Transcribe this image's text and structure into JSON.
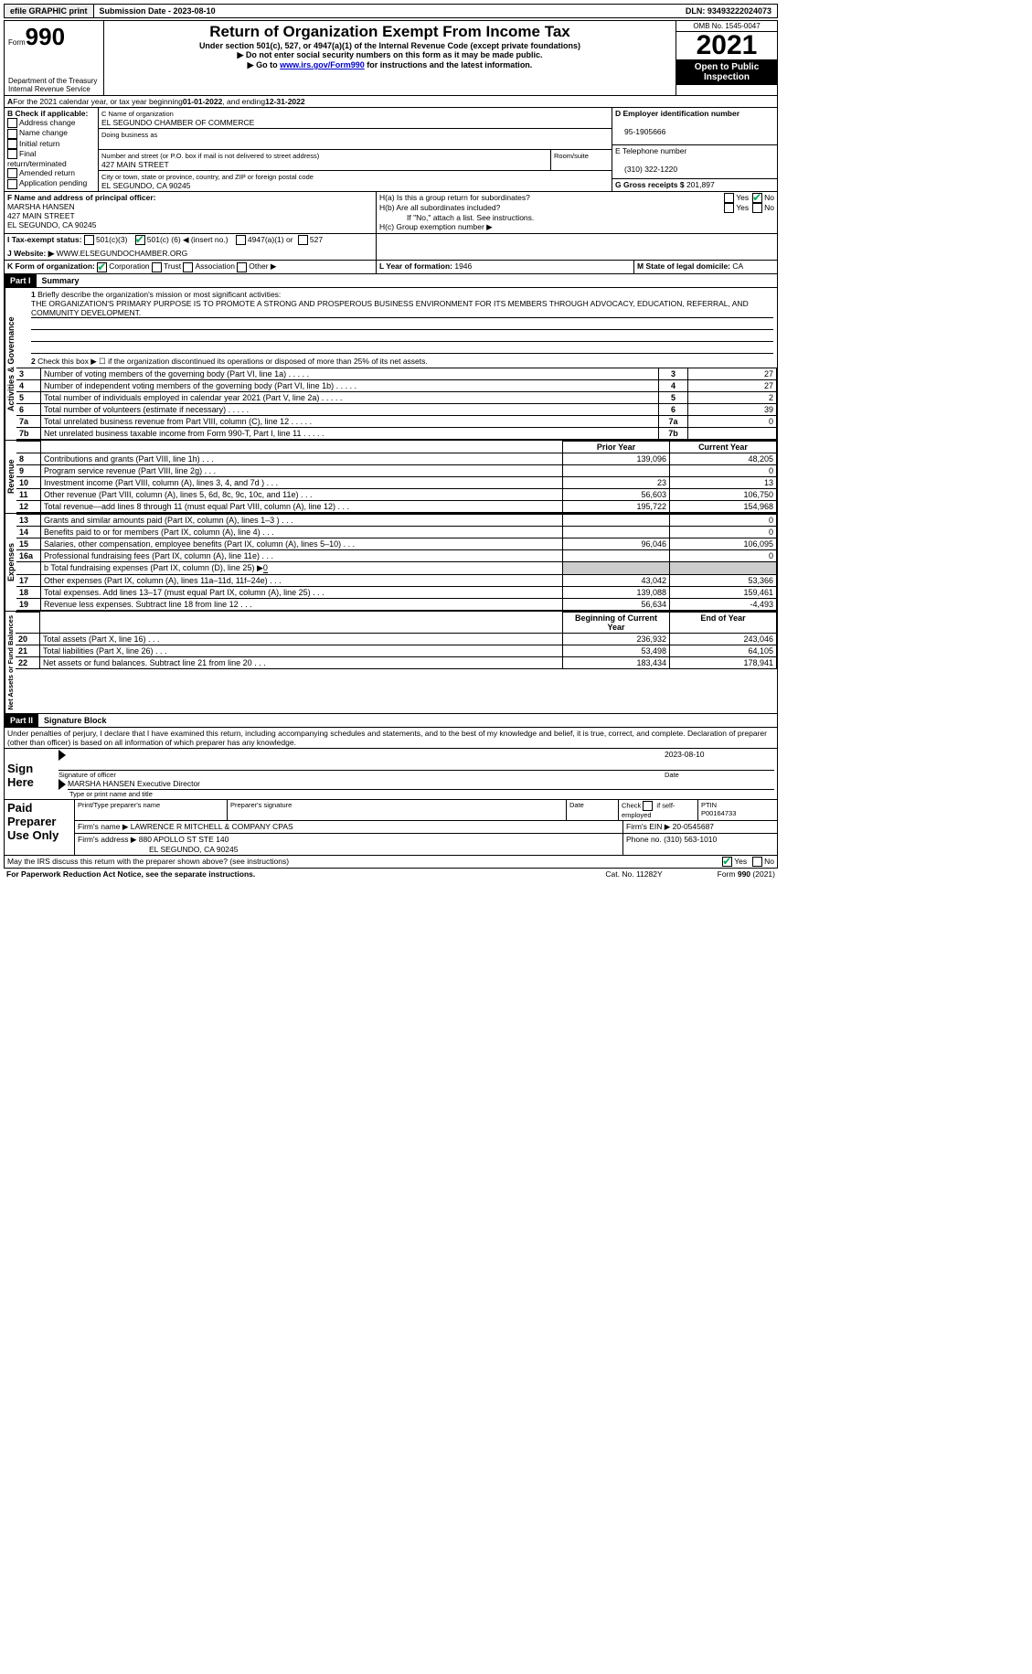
{
  "topbar": {
    "efile": "efile GRAPHIC print",
    "submission_label": "Submission Date - ",
    "submission_date": "2023-08-10",
    "dln_label": "DLN: ",
    "dln": "93493222024073"
  },
  "header": {
    "form_prefix": "Form",
    "form_number": "990",
    "dept1": "Department of the Treasury",
    "dept2": "Internal Revenue Service",
    "title": "Return of Organization Exempt From Income Tax",
    "subtitle": "Under section 501(c), 527, or 4947(a)(1) of the Internal Revenue Code (except private foundations)",
    "note1": "▶ Do not enter social security numbers on this form as it may be made public.",
    "note2_pre": "▶ Go to ",
    "note2_link": "www.irs.gov/Form990",
    "note2_post": " for instructions and the latest information.",
    "omb": "OMB No. 1545-0047",
    "year": "2021",
    "open": "Open to Public Inspection"
  },
  "periodA": {
    "text_pre": "For the 2021 calendar year, or tax year beginning ",
    "begin": "01-01-2022",
    "text_mid": " , and ending ",
    "end": "12-31-2022"
  },
  "boxB": {
    "label": "B Check if applicable:",
    "opts": [
      "Address change",
      "Name change",
      "Initial return",
      "Final return/terminated",
      "Amended return",
      "Application pending"
    ]
  },
  "boxC": {
    "name_label": "C Name of organization",
    "name": "EL SEGUNDO CHAMBER OF COMMERCE",
    "dba_label": "Doing business as",
    "addr_label": "Number and street (or P.O. box if mail is not delivered to street address)",
    "room_label": "Room/suite",
    "addr": "427 MAIN STREET",
    "city_label": "City or town, state or province, country, and ZIP or foreign postal code",
    "city": "EL SEGUNDO, CA  90245"
  },
  "boxD": {
    "label": "D Employer identification number",
    "value": "95-1905666"
  },
  "boxE": {
    "label": "E Telephone number",
    "value": "(310) 322-1220"
  },
  "boxG": {
    "label": "G Gross receipts $ ",
    "value": "201,897"
  },
  "boxF": {
    "label": "F Name and address of principal officer:",
    "name": "MARSHA HANSEN",
    "addr1": "427 MAIN STREET",
    "addr2": "EL SEGUNDO, CA  90245"
  },
  "boxH": {
    "a_label": "H(a)  Is this a group return for subordinates?",
    "b_label": "H(b)  Are all subordinates included?",
    "b_note": "If \"No,\" attach a list. See instructions.",
    "c_label": "H(c)  Group exemption number ▶",
    "yes": "Yes",
    "no": "No"
  },
  "boxI": {
    "label": "I   Tax-exempt status:",
    "o1": "501(c)(3)",
    "o2_pre": "501(c) (",
    "o2_num": "6",
    "o2_post": ") ◀ (insert no.)",
    "o3": "4947(a)(1) or",
    "o4": "527"
  },
  "boxJ": {
    "label": "J   Website: ▶",
    "value": "WWW.ELSEGUNDOCHAMBER.ORG"
  },
  "boxK": {
    "label": "K Form of organization:",
    "opts": [
      "Corporation",
      "Trust",
      "Association",
      "Other ▶"
    ]
  },
  "boxL": {
    "label": "L Year of formation: ",
    "value": "1946"
  },
  "boxM": {
    "label": "M State of legal domicile: ",
    "value": "CA"
  },
  "part1": {
    "num": "Part I",
    "title": "Summary"
  },
  "sections": {
    "gov": "Activities & Governance",
    "rev": "Revenue",
    "exp": "Expenses",
    "net": "Net Assets or Fund Balances"
  },
  "line1": {
    "label": "Briefly describe the organization's mission or most significant activities:",
    "text": "THE ORGANIZATION'S PRIMARY PURPOSE IS TO PROMOTE A STRONG AND PROSPEROUS BUSINESS ENVIRONMENT FOR ITS MEMBERS THROUGH ADVOCACY, EDUCATION, REFERRAL, AND COMMUNITY DEVELOPMENT."
  },
  "line2": "Check this box ▶ ☐ if the organization discontinued its operations or disposed of more than 25% of its net assets.",
  "gov_rows": [
    {
      "n": "3",
      "t": "Number of voting members of the governing body (Part VI, line 1a)",
      "box": "3",
      "v": "27"
    },
    {
      "n": "4",
      "t": "Number of independent voting members of the governing body (Part VI, line 1b)",
      "box": "4",
      "v": "27"
    },
    {
      "n": "5",
      "t": "Total number of individuals employed in calendar year 2021 (Part V, line 2a)",
      "box": "5",
      "v": "2"
    },
    {
      "n": "6",
      "t": "Total number of volunteers (estimate if necessary)",
      "box": "6",
      "v": "39"
    },
    {
      "n": "7a",
      "t": "Total unrelated business revenue from Part VIII, column (C), line 12",
      "box": "7a",
      "v": "0"
    },
    {
      "n": "7b",
      "t": "Net unrelated business taxable income from Form 990-T, Part I, line 11",
      "box": "7b",
      "v": ""
    }
  ],
  "cols": {
    "prior": "Prior Year",
    "current": "Current Year",
    "boy": "Beginning of Current Year",
    "eoy": "End of Year"
  },
  "rev_rows": [
    {
      "n": "8",
      "t": "Contributions and grants (Part VIII, line 1h)",
      "p": "139,096",
      "c": "48,205"
    },
    {
      "n": "9",
      "t": "Program service revenue (Part VIII, line 2g)",
      "p": "",
      "c": "0"
    },
    {
      "n": "10",
      "t": "Investment income (Part VIII, column (A), lines 3, 4, and 7d )",
      "p": "23",
      "c": "13"
    },
    {
      "n": "11",
      "t": "Other revenue (Part VIII, column (A), lines 5, 6d, 8c, 9c, 10c, and 11e)",
      "p": "56,603",
      "c": "106,750"
    },
    {
      "n": "12",
      "t": "Total revenue—add lines 8 through 11 (must equal Part VIII, column (A), line 12)",
      "p": "195,722",
      "c": "154,968"
    }
  ],
  "exp_rows": [
    {
      "n": "13",
      "t": "Grants and similar amounts paid (Part IX, column (A), lines 1–3 )",
      "p": "",
      "c": "0"
    },
    {
      "n": "14",
      "t": "Benefits paid to or for members (Part IX, column (A), line 4)",
      "p": "",
      "c": "0"
    },
    {
      "n": "15",
      "t": "Salaries, other compensation, employee benefits (Part IX, column (A), lines 5–10)",
      "p": "96,046",
      "c": "106,095"
    },
    {
      "n": "16a",
      "t": "Professional fundraising fees (Part IX, column (A), line 11e)",
      "p": "",
      "c": "0"
    }
  ],
  "line16b_label": "b  Total fundraising expenses (Part IX, column (D), line 25) ▶",
  "line16b_val": "0",
  "exp_rows2": [
    {
      "n": "17",
      "t": "Other expenses (Part IX, column (A), lines 11a–11d, 11f–24e)",
      "p": "43,042",
      "c": "53,366"
    },
    {
      "n": "18",
      "t": "Total expenses. Add lines 13–17 (must equal Part IX, column (A), line 25)",
      "p": "139,088",
      "c": "159,461"
    },
    {
      "n": "19",
      "t": "Revenue less expenses. Subtract line 18 from line 12",
      "p": "56,634",
      "c": "-4,493"
    }
  ],
  "net_rows": [
    {
      "n": "20",
      "t": "Total assets (Part X, line 16)",
      "p": "236,932",
      "c": "243,046"
    },
    {
      "n": "21",
      "t": "Total liabilities (Part X, line 26)",
      "p": "53,498",
      "c": "64,105"
    },
    {
      "n": "22",
      "t": "Net assets or fund balances. Subtract line 21 from line 20",
      "p": "183,434",
      "c": "178,941"
    }
  ],
  "part2": {
    "num": "Part II",
    "title": "Signature Block"
  },
  "penalties": "Under penalties of perjury, I declare that I have examined this return, including accompanying schedules and statements, and to the best of my knowledge and belief, it is true, correct, and complete. Declaration of preparer (other than officer) is based on all information of which preparer has any knowledge.",
  "sign": {
    "here": "Sign Here",
    "sig_label": "Signature of officer",
    "date_label": "Date",
    "date": "2023-08-10",
    "name": "MARSHA HANSEN  Executive Director",
    "name_label": "Type or print name and title"
  },
  "paid": {
    "title": "Paid Preparer Use Only",
    "h1": "Print/Type preparer's name",
    "h2": "Preparer's signature",
    "h3": "Date",
    "h4_pre": "Check ",
    "h4_post": " if self-employed",
    "h5": "PTIN",
    "ptin": "P00164733",
    "firm_name_label": "Firm's name    ▶ ",
    "firm_name": "LAWRENCE R MITCHELL & COMPANY CPAS",
    "firm_ein_label": "Firm's EIN ▶ ",
    "firm_ein": "20-0545687",
    "firm_addr_label": "Firm's address ▶ ",
    "firm_addr1": "880 APOLLO ST STE 140",
    "firm_addr2": "EL SEGUNDO, CA  90245",
    "phone_label": "Phone no. ",
    "phone": "(310) 563-1010"
  },
  "footer": {
    "discuss": "May the IRS discuss this return with the preparer shown above? (see instructions)",
    "yes": "Yes",
    "no": "No",
    "paperwork": "For Paperwork Reduction Act Notice, see the separate instructions.",
    "cat": "Cat. No. 11282Y",
    "form": "Form 990 (2021)"
  }
}
